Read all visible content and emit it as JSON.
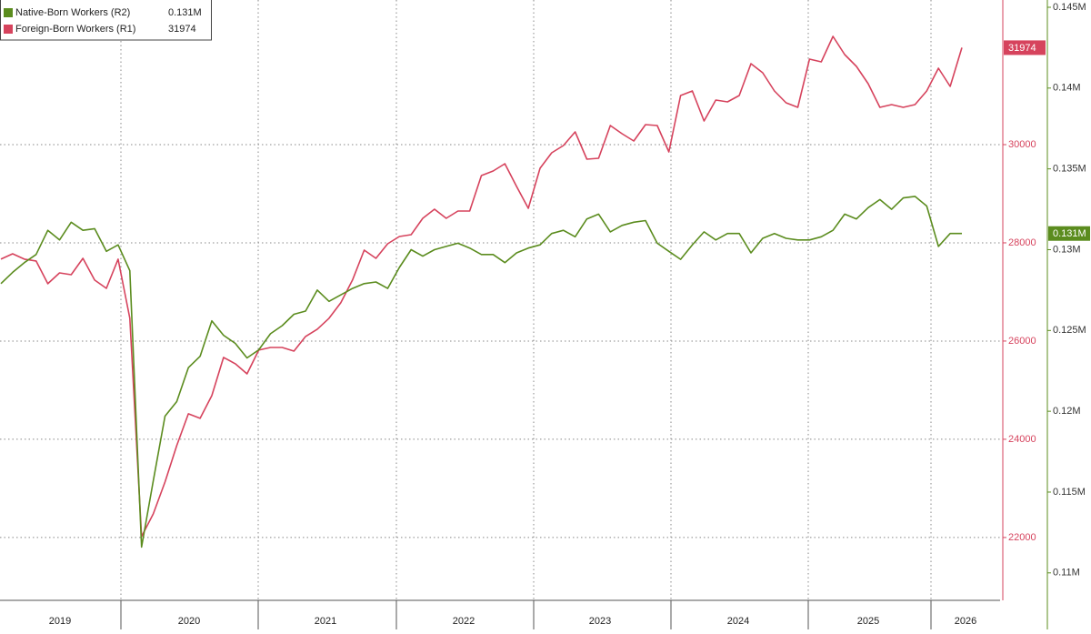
{
  "chart_data": {
    "type": "line",
    "x_axis_labels": [
      "2019",
      "2020",
      "2021",
      "2022",
      "2023",
      "2024",
      "2025",
      "2026"
    ],
    "ylim": [
      20720,
      32945
    ],
    "yticks": [
      22000,
      24000,
      26000,
      28000,
      30000
    ],
    "y2lim": [
      0.1083,
      0.14545
    ],
    "y2ticks": [
      {
        "value": 0.11,
        "label": "0.11M"
      },
      {
        "value": 0.115,
        "label": "0.115M"
      },
      {
        "value": 0.12,
        "label": "0.12M"
      },
      {
        "value": 0.125,
        "label": "0.125M"
      },
      {
        "value": 0.13,
        "label": "0.13M"
      },
      {
        "value": 0.135,
        "label": "0.135M"
      },
      {
        "value": 0.14,
        "label": "0.14M"
      },
      {
        "value": 0.145,
        "label": "0.145M"
      }
    ],
    "grid": true,
    "legend": "top-left",
    "series": [
      {
        "name": "Native-Born Workers (R2)",
        "color": "#5b8c1e",
        "axis": "y2",
        "values": [
          0.1279,
          0.1286,
          0.1292,
          0.1297,
          0.1312,
          0.1306,
          0.1317,
          0.1312,
          0.1313,
          0.1299,
          0.1303,
          0.1287,
          0.1116,
          0.1157,
          0.1197,
          0.1206,
          0.1227,
          0.1234,
          0.1256,
          0.1247,
          0.1242,
          0.1233,
          0.1238,
          0.1248,
          0.1253,
          0.126,
          0.1262,
          0.1275,
          0.1268,
          0.1272,
          0.1276,
          0.1279,
          0.128,
          0.1276,
          0.1289,
          0.13,
          0.1296,
          0.13,
          0.1302,
          0.1304,
          0.1301,
          0.1297,
          0.1297,
          0.1292,
          0.1298,
          0.1301,
          0.1303,
          0.131,
          0.1312,
          0.1308,
          0.1319,
          0.1322,
          0.1311,
          0.1315,
          0.1317,
          0.1318,
          0.1304,
          0.1299,
          0.1294,
          0.1303,
          0.1311,
          0.1306,
          0.131,
          0.131,
          0.1298,
          0.1307,
          0.131,
          0.1307,
          0.1306,
          0.1306,
          0.1308,
          0.1312,
          0.1322,
          0.1319,
          0.1326,
          0.1331,
          0.1325,
          0.1332,
          0.1333,
          0.1327,
          0.1302,
          0.131,
          0.131
        ],
        "value_labels": [
          null,
          null,
          null,
          null,
          null,
          null,
          null,
          null,
          null,
          null,
          null,
          null,
          null,
          null,
          null,
          null,
          null,
          null,
          null,
          null,
          null,
          null,
          null,
          null,
          null,
          null,
          null,
          null,
          null,
          null,
          null,
          null,
          null,
          null,
          null,
          null,
          null,
          null,
          null,
          null,
          null,
          null,
          null,
          null,
          null,
          null,
          null,
          null,
          null,
          null,
          null,
          null,
          null,
          null,
          null,
          null,
          null,
          null,
          null,
          null,
          null,
          null,
          null,
          null,
          null,
          null,
          null,
          null,
          null,
          null,
          null,
          null,
          null,
          null,
          null,
          null,
          null,
          null,
          null,
          null,
          null,
          null,
          "0.131M"
        ]
      },
      {
        "name": "Foreign-Born Workers (R1)",
        "color": "#d6435d",
        "values": [
          27667,
          27778,
          27667,
          27630,
          27167,
          27389,
          27352,
          27685,
          27241,
          27074,
          27667,
          26463,
          22019,
          22481,
          23130,
          23870,
          24519,
          24426,
          24889,
          25667,
          25537,
          25333,
          25815,
          25870,
          25870,
          25796,
          26093,
          26241,
          26463,
          26778,
          27241,
          27852,
          27685,
          27981,
          28130,
          28167,
          28500,
          28685,
          28500,
          28648,
          28648,
          29370,
          29463,
          29611,
          29148,
          28704,
          29519,
          29833,
          29981,
          30259,
          29704,
          29722,
          30389,
          30222,
          30074,
          30407,
          30389,
          29852,
          31000,
          31093,
          30481,
          30907,
          30870,
          31000,
          31648,
          31463,
          31093,
          30852,
          30759,
          31741,
          31685,
          32204,
          31833,
          31593,
          31241,
          30759,
          30815,
          30759,
          30815,
          31093,
          31556,
          31185,
          31974
        ]
      }
    ]
  }
}
